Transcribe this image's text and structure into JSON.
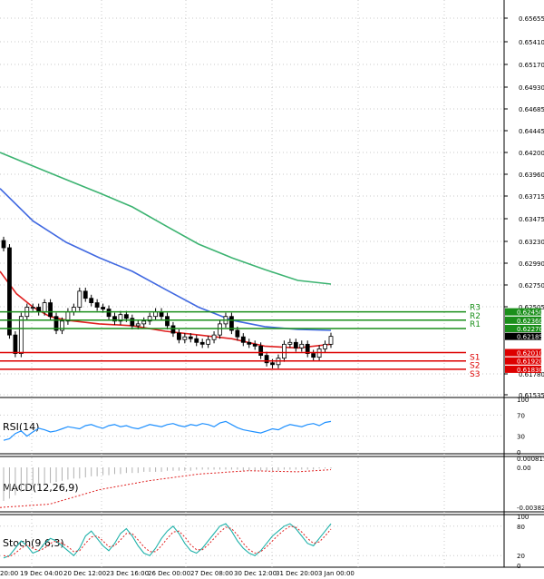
{
  "chart_data": [
    {
      "type": "candlestick",
      "title": "",
      "y_ticks": [
        "0.65655",
        "0.65410",
        "0.65170",
        "0.64930",
        "0.64685",
        "0.64445",
        "0.64200",
        "0.63960",
        "0.63715",
        "0.63475",
        "0.63230",
        "0.62990",
        "0.62750",
        "0.62505",
        "0.61780",
        "0.61535"
      ],
      "ylim": [
        0.6154,
        0.657
      ],
      "x_ticks": [
        "20:00",
        "19 Dec 04:00",
        "20 Dec 12:00",
        "23 Dec 16:00",
        "26 Dec 00:00",
        "27 Dec 08:00",
        "30 Dec 12:00",
        "31 Dec 20:00",
        "3 Jan 00:00"
      ],
      "current_price": "0.62185",
      "levels": [
        {
          "name": "R3",
          "value": 0.6245,
          "label": "0.62450",
          "color": "#1a8f1a"
        },
        {
          "name": "R2",
          "value": 0.6236,
          "label": "0.62360",
          "color": "#1a8f1a"
        },
        {
          "name": "R1",
          "value": 0.6227,
          "label": "0.62270",
          "color": "#1a8f1a"
        },
        {
          "name": "S1",
          "value": 0.6201,
          "label": "0.62010",
          "color": "#dd0000"
        },
        {
          "name": "S2",
          "value": 0.6192,
          "label": "0.61920",
          "color": "#dd0000"
        },
        {
          "name": "S3",
          "value": 0.6183,
          "label": "0.61830",
          "color": "#dd0000"
        }
      ],
      "close_series": [
        0.6316,
        0.622,
        0.62,
        0.624,
        0.625,
        0.625,
        0.6245,
        0.6255,
        0.624,
        0.6225,
        0.6235,
        0.6245,
        0.625,
        0.6268,
        0.626,
        0.6255,
        0.625,
        0.6248,
        0.624,
        0.6235,
        0.6242,
        0.6238,
        0.623,
        0.6232,
        0.6235,
        0.624,
        0.6245,
        0.624,
        0.623,
        0.6222,
        0.6215,
        0.6218,
        0.6216,
        0.6212,
        0.621,
        0.6215,
        0.622,
        0.6232,
        0.624,
        0.6225,
        0.6218,
        0.6212,
        0.621,
        0.6208,
        0.6198,
        0.619,
        0.6188,
        0.6195,
        0.621,
        0.6212,
        0.6206,
        0.621,
        0.62,
        0.6196,
        0.6205,
        0.621,
        0.62185
      ],
      "ma_red": [
        [
          0,
          0.629
        ],
        [
          0.05,
          0.6265
        ],
        [
          0.1,
          0.625
        ],
        [
          0.15,
          0.624
        ],
        [
          0.2,
          0.6236
        ],
        [
          0.3,
          0.6232
        ],
        [
          0.4,
          0.623
        ],
        [
          0.5,
          0.6224
        ],
        [
          0.6,
          0.622
        ],
        [
          0.7,
          0.6216
        ],
        [
          0.8,
          0.6208
        ],
        [
          0.9,
          0.6206
        ],
        [
          1,
          0.621
        ]
      ],
      "ma_blue": [
        [
          0,
          0.638
        ],
        [
          0.1,
          0.6345
        ],
        [
          0.2,
          0.6322
        ],
        [
          0.3,
          0.6305
        ],
        [
          0.4,
          0.629
        ],
        [
          0.5,
          0.627
        ],
        [
          0.6,
          0.625
        ],
        [
          0.7,
          0.6236
        ],
        [
          0.8,
          0.6229
        ],
        [
          0.9,
          0.6226
        ],
        [
          1,
          0.6225
        ]
      ],
      "ma_green": [
        [
          0,
          0.642
        ],
        [
          0.1,
          0.6405
        ],
        [
          0.2,
          0.639
        ],
        [
          0.3,
          0.6375
        ],
        [
          0.4,
          0.636
        ],
        [
          0.5,
          0.634
        ],
        [
          0.6,
          0.632
        ],
        [
          0.7,
          0.6305
        ],
        [
          0.8,
          0.6292
        ],
        [
          0.9,
          0.628
        ],
        [
          1,
          0.6276
        ]
      ]
    },
    {
      "type": "line",
      "title": "RSI(14)",
      "y_ticks": [
        "100",
        "70",
        "30",
        "0"
      ],
      "ylim": [
        0,
        100
      ],
      "values": [
        22,
        25,
        35,
        40,
        30,
        38,
        45,
        42,
        38,
        40,
        44,
        48,
        46,
        44,
        50,
        52,
        48,
        45,
        50,
        52,
        48,
        50,
        46,
        44,
        48,
        52,
        50,
        48,
        52,
        54,
        50,
        48,
        52,
        50,
        54,
        52,
        48,
        55,
        58,
        52,
        46,
        42,
        40,
        38,
        36,
        40,
        44,
        42,
        48,
        52,
        50,
        48,
        52,
        54,
        50,
        56,
        58
      ]
    },
    {
      "type": "bar",
      "title": "MACD(12,26,9)",
      "y_ticks": [
        "0.000815",
        "0.00",
        "-0.003827"
      ],
      "ylim": [
        -0.003827,
        0.000815
      ],
      "signal_points": [
        [
          0,
          -0.0036
        ],
        [
          0.15,
          -0.0033
        ],
        [
          0.3,
          -0.002
        ],
        [
          0.45,
          -0.0012
        ],
        [
          0.6,
          -0.0006
        ],
        [
          0.75,
          -0.0003
        ],
        [
          0.9,
          -0.0004
        ],
        [
          1,
          -0.0002
        ]
      ],
      "histogram": [
        -0.003,
        -0.0028,
        -0.0025,
        -0.0022,
        -0.002,
        -0.0018,
        -0.0016,
        -0.0015,
        -0.0014,
        -0.0013,
        -0.0012,
        -0.0011,
        -0.001,
        -0.001,
        -0.0009,
        -0.0008,
        -0.0008,
        -0.0007,
        -0.0007,
        -0.0006,
        -0.0006,
        -0.0005,
        -0.0005,
        -0.0005,
        -0.0004,
        -0.0004,
        -0.0004,
        -0.0004,
        -0.0003,
        -0.0003,
        -0.0003,
        -0.0003,
        -0.0003,
        -0.0002,
        -0.0002,
        -0.0002,
        -0.0002,
        -0.0002,
        -0.0002,
        -0.0002,
        -0.0002,
        -0.0003,
        -0.0003,
        -0.0003,
        -0.0003,
        -0.0003,
        -0.0003,
        -0.0003,
        -0.0002,
        -0.0002,
        -0.0002,
        -0.0002,
        -0.0002,
        -0.0002,
        -0.0001,
        -0.0001,
        -0.0001
      ]
    },
    {
      "type": "line",
      "title": "Stoch(9,6,3)",
      "y_ticks": [
        "100",
        "80",
        "20",
        "0"
      ],
      "ylim": [
        0,
        100
      ],
      "main": [
        15,
        20,
        35,
        50,
        40,
        25,
        30,
        45,
        55,
        50,
        40,
        30,
        20,
        35,
        60,
        70,
        55,
        40,
        30,
        45,
        65,
        75,
        60,
        40,
        25,
        20,
        35,
        55,
        70,
        80,
        65,
        45,
        30,
        25,
        35,
        50,
        65,
        80,
        85,
        70,
        50,
        35,
        25,
        20,
        30,
        45,
        60,
        70,
        80,
        85,
        75,
        60,
        45,
        40,
        55,
        70,
        85
      ],
      "signal": [
        20,
        18,
        25,
        35,
        42,
        35,
        30,
        35,
        45,
        50,
        45,
        38,
        28,
        30,
        45,
        58,
        60,
        50,
        38,
        40,
        52,
        65,
        65,
        52,
        38,
        28,
        28,
        40,
        55,
        68,
        70,
        58,
        42,
        32,
        32,
        42,
        55,
        68,
        78,
        75,
        62,
        45,
        32,
        25,
        28,
        38,
        50,
        62,
        72,
        80,
        78,
        68,
        55,
        45,
        48,
        60,
        74
      ]
    }
  ]
}
